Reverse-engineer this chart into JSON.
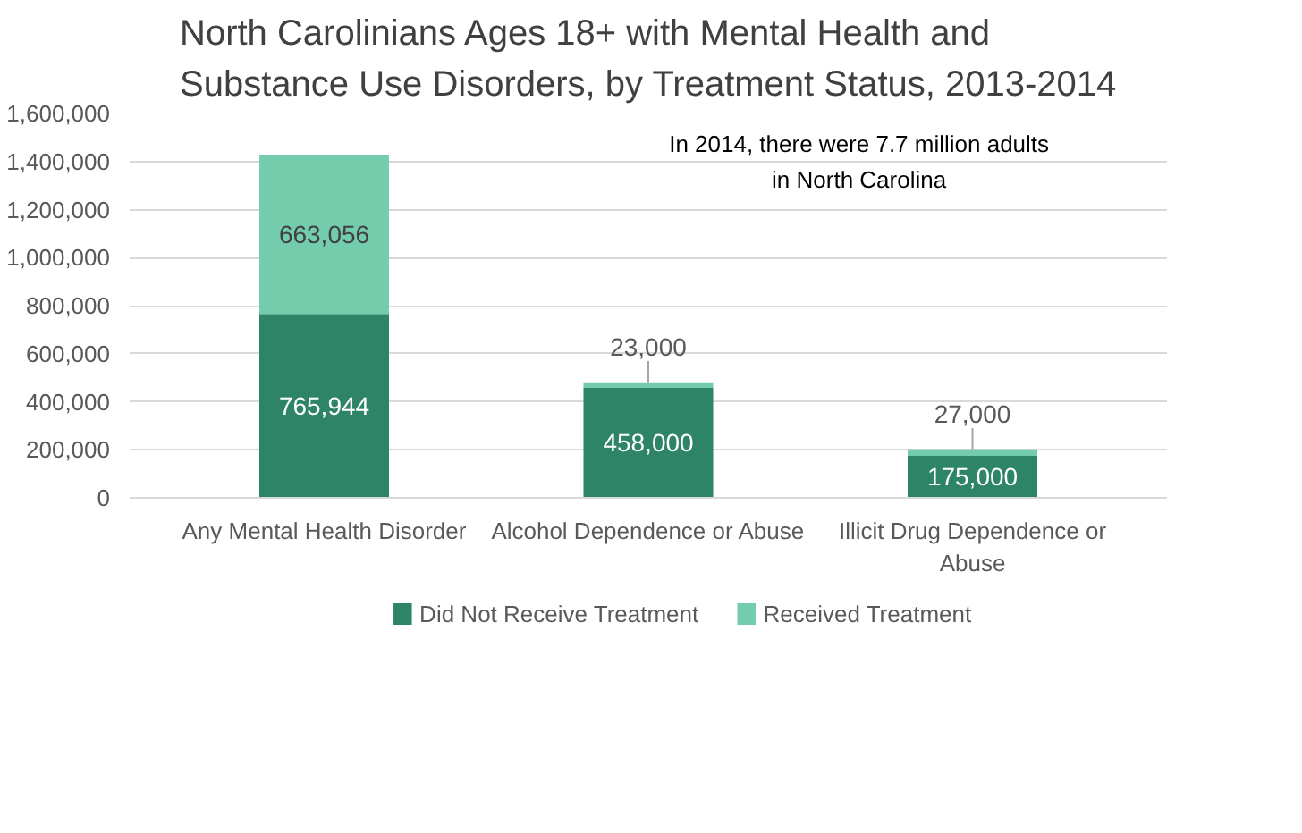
{
  "chart_data": {
    "type": "bar",
    "title": "North Carolinians Ages 18+ with Mental Health and Substance Use Disorders, by Treatment Status, 2013-2014",
    "categories": [
      "Any Mental Health Disorder",
      "Alcohol Dependence or Abuse",
      "Illicit Drug Dependence or Abuse"
    ],
    "stacked": true,
    "series": [
      {
        "name": "Did Not Receive Treatment",
        "color": "#2e8467",
        "values": [
          765944,
          458000,
          175000
        ],
        "value_labels": [
          "765,944",
          "458,000",
          "175,000"
        ]
      },
      {
        "name": "Received Treatment",
        "color": "#73cdad",
        "values": [
          663056,
          23000,
          27000
        ],
        "value_labels": [
          "663,056",
          "23,000",
          "27,000"
        ]
      }
    ],
    "ylim": [
      0,
      1600000
    ],
    "yticks": [
      {
        "value": 0,
        "label": "0"
      },
      {
        "value": 200000,
        "label": "200,000"
      },
      {
        "value": 400000,
        "label": "400,000"
      },
      {
        "value": 600000,
        "label": "600,000"
      },
      {
        "value": 800000,
        "label": "800,000"
      },
      {
        "value": 1000000,
        "label": "1,000,000"
      },
      {
        "value": 1200000,
        "label": "1,200,000"
      },
      {
        "value": 1400000,
        "label": "1,400,000"
      },
      {
        "value": 1600000,
        "label": "1,600,000"
      }
    ],
    "grid": "y",
    "legend": "bottom",
    "annotations": [
      "In 2014, there were 7.7 million adults in North Carolina"
    ]
  }
}
